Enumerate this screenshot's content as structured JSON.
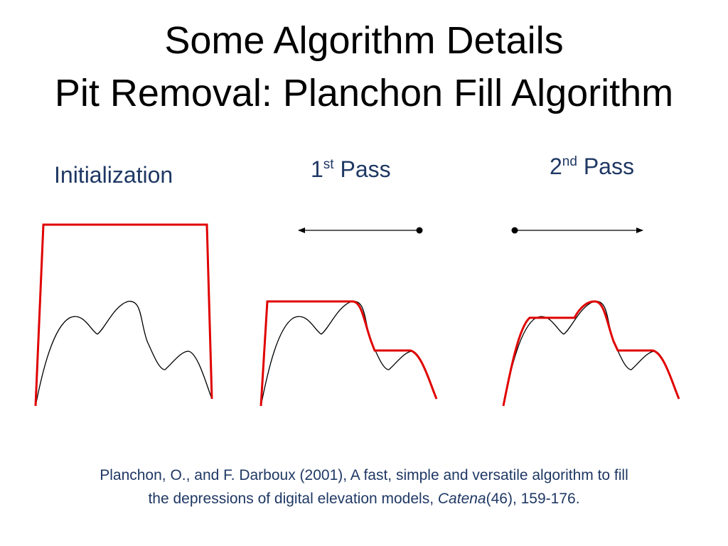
{
  "title": {
    "line1": "Some Algorithm Details",
    "line2": "Pit Removal: Planchon Fill Algorithm"
  },
  "panels": {
    "init": {
      "label": "Initialization"
    },
    "pass1": {
      "num": "1",
      "sup": "st",
      "word": "Pass"
    },
    "pass2": {
      "num": "2",
      "sup": "nd",
      "word": "Pass"
    }
  },
  "citation": {
    "line1": "Planchon, O., and F. Darboux (2001), A fast, simple and versatile algorithm to fill",
    "line2_pre": "the depressions of digital elevation models,",
    "journal": "Catena",
    "line2_post": "(46), 159-176."
  },
  "colors": {
    "terrain": "#000000",
    "water_surface": "#e00000",
    "label_text": "#1f3864"
  }
}
